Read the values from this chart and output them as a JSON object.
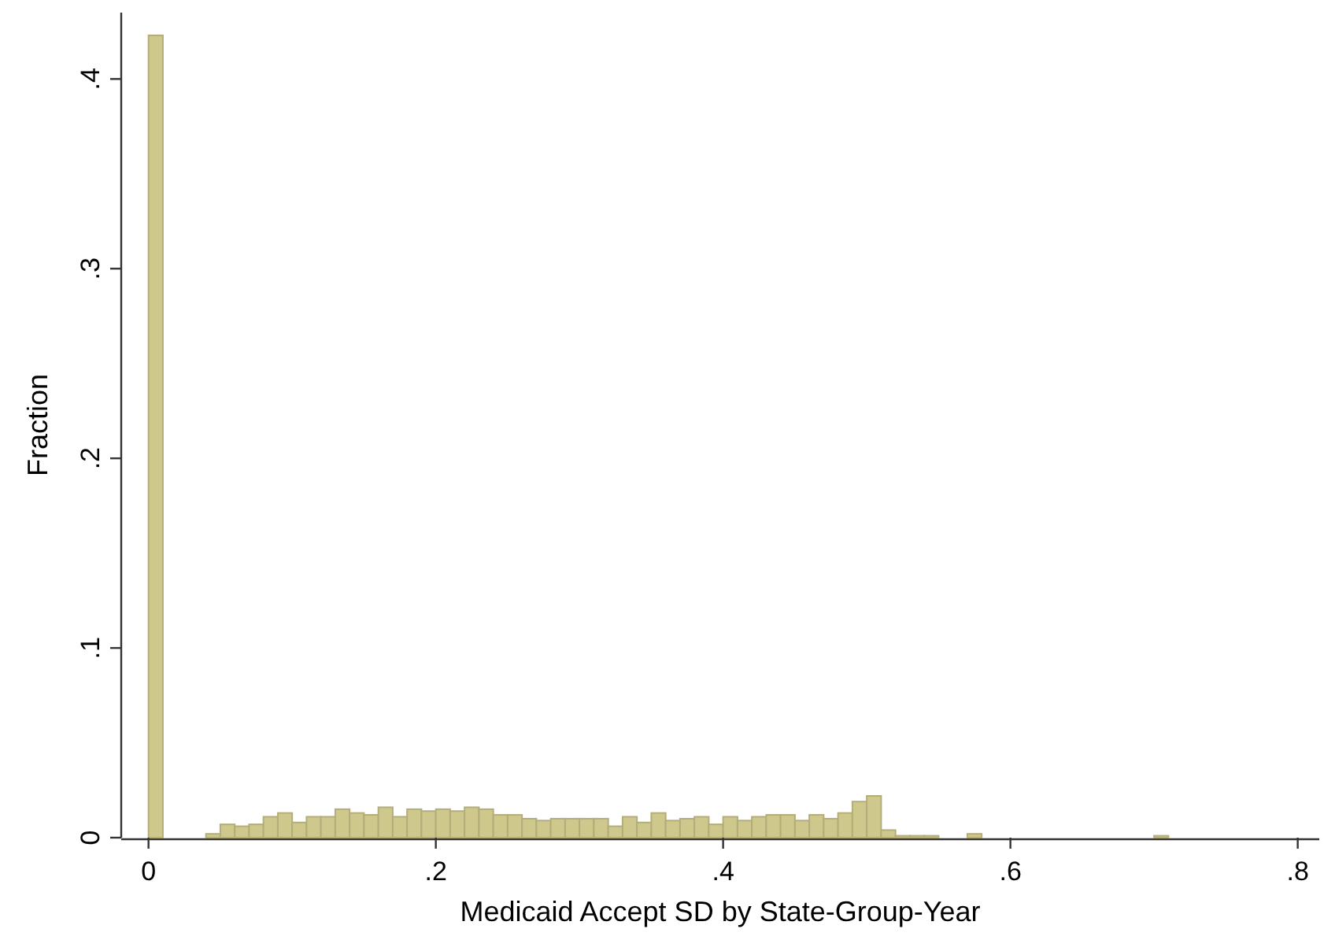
{
  "chart_data": {
    "type": "histogram",
    "xlabel": "Medicaid Accept SD by State-Group-Year",
    "ylabel": "Fraction",
    "color": "#cfc88d",
    "bins": [
      0,
      0.01,
      0.02,
      0.03,
      0.04,
      0.05,
      0.06,
      0.07,
      0.08,
      0.09,
      0.1,
      0.11,
      0.12,
      0.13,
      0.14,
      0.15,
      0.16,
      0.17,
      0.18,
      0.19,
      0.2,
      0.21,
      0.22,
      0.23,
      0.24,
      0.25,
      0.26,
      0.27,
      0.28,
      0.29,
      0.3,
      0.31,
      0.32,
      0.33,
      0.34,
      0.35,
      0.36,
      0.37,
      0.38,
      0.39,
      0.4,
      0.41,
      0.42,
      0.43,
      0.44,
      0.45,
      0.46,
      0.47,
      0.48,
      0.49,
      0.5,
      0.51,
      0.52,
      0.53,
      0.54,
      0.55,
      0.56,
      0.57,
      0.58,
      0.59,
      0.6,
      0.61,
      0.62,
      0.63,
      0.64,
      0.65,
      0.66,
      0.67,
      0.68,
      0.69,
      0.7,
      0.71
    ],
    "values": [
      0.423,
      0,
      0,
      0,
      0.002,
      0.007,
      0.006,
      0.007,
      0.011,
      0.013,
      0.008,
      0.011,
      0.011,
      0.015,
      0.013,
      0.012,
      0.016,
      0.011,
      0.015,
      0.014,
      0.015,
      0.014,
      0.016,
      0.015,
      0.012,
      0.012,
      0.01,
      0.009,
      0.01,
      0.01,
      0.01,
      0.01,
      0.006,
      0.011,
      0.008,
      0.013,
      0.009,
      0.01,
      0.011,
      0.007,
      0.011,
      0.009,
      0.011,
      0.012,
      0.012,
      0.009,
      0.012,
      0.01,
      0.013,
      0.019,
      0.022,
      0.004,
      0.001,
      0.001,
      0.001,
      0,
      0,
      0.002,
      0,
      0,
      0,
      0,
      0,
      0,
      0,
      0,
      0,
      0,
      0,
      0,
      0.001
    ],
    "xlim": [
      -0.019,
      0.815
    ],
    "ylim": [
      0,
      0.435
    ],
    "xticks": [
      0,
      {
        "value": 0.2,
        "label": ".2"
      },
      {
        "value": 0.4,
        "label": ".4"
      },
      {
        "value": 0.6,
        "label": ".6"
      },
      {
        "value": 0.8,
        "label": ".8"
      }
    ],
    "yticks": [
      0,
      {
        "value": 0.1,
        "label": ".1"
      },
      {
        "value": 0.2,
        "label": ".2"
      },
      {
        "value": 0.3,
        "label": ".3"
      },
      {
        "value": 0.4,
        "label": ".4"
      }
    ],
    "grid": false
  }
}
